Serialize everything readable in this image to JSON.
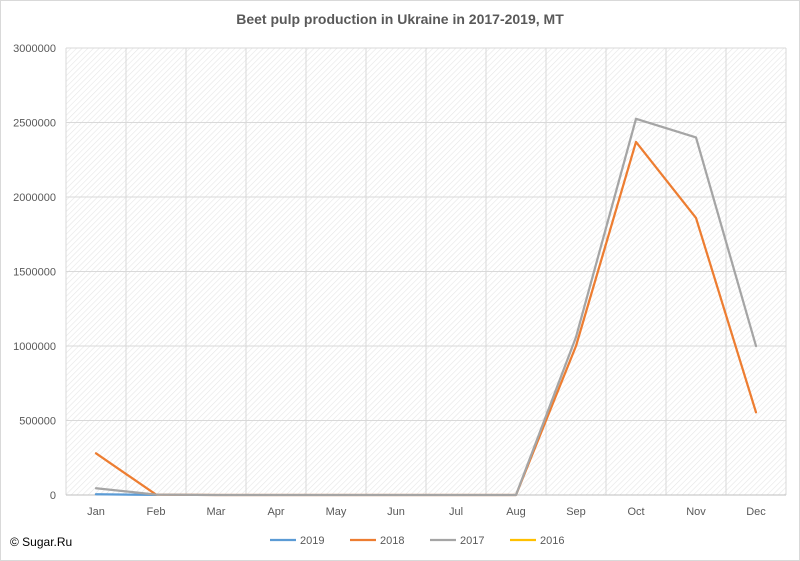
{
  "copyright": "© Sugar.Ru",
  "colors": {
    "grid": "#d9d9d9",
    "hatch": "#e6e6e6",
    "axis": "#bfbfbf",
    "text": "#595959"
  },
  "chart_data": {
    "type": "line",
    "title": "Beet pulp production in Ukraine in 2017-2019, MT",
    "xlabel": "",
    "ylabel": "",
    "categories": [
      "Jan",
      "Feb",
      "Mar",
      "Apr",
      "May",
      "Jun",
      "Jul",
      "Aug",
      "Sep",
      "Oct",
      "Nov",
      "Dec"
    ],
    "ylim": [
      0,
      3000000
    ],
    "yticks": [
      "0",
      "500000",
      "1000000",
      "1500000",
      "2000000",
      "2500000",
      "3000000"
    ],
    "grid": true,
    "background": "diagonal hatch",
    "legend_position": "bottom",
    "series": [
      {
        "name": "2019",
        "color": "#5b9bd5",
        "values": [
          5000,
          1000,
          null,
          null,
          null,
          null,
          null,
          null,
          null,
          null,
          null,
          null
        ]
      },
      {
        "name": "2018",
        "color": "#ed7d31",
        "values": [
          280000,
          3000,
          0,
          0,
          0,
          0,
          0,
          0,
          1000000,
          2370000,
          1860000,
          555000
        ]
      },
      {
        "name": "2017",
        "color": "#a5a5a5",
        "values": [
          45000,
          3000,
          0,
          0,
          0,
          0,
          0,
          0,
          1060000,
          2525000,
          2400000,
          1000000
        ]
      },
      {
        "name": "2016",
        "color": "#ffc000",
        "values": [
          null,
          null,
          null,
          null,
          null,
          null,
          null,
          null,
          null,
          null,
          null,
          null
        ]
      }
    ]
  }
}
